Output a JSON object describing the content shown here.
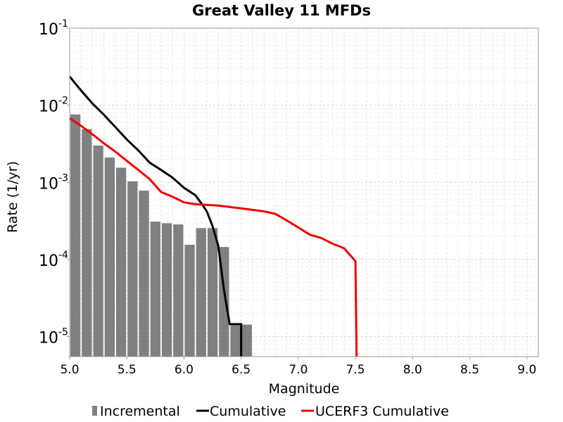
{
  "chart_data": {
    "type": "bar",
    "title": "Great Valley 11 MFDs",
    "xlabel": "Magnitude",
    "ylabel": "Rate (1/yr)",
    "xlim": [
      5.0,
      9.1
    ],
    "ylim": [
      5.5e-06,
      0.1
    ],
    "yscale": "log",
    "grid": true,
    "legend_position": "bottom",
    "x_ticks": [
      "5.0",
      "5.5",
      "6.0",
      "6.5",
      "7.0",
      "7.5",
      "8.0",
      "8.5",
      "9.0"
    ],
    "y_ticks": [
      {
        "base": "10",
        "exp": "-5",
        "value": 1e-05
      },
      {
        "base": "10",
        "exp": "-4",
        "value": 0.0001
      },
      {
        "base": "10",
        "exp": "-3",
        "value": 0.001
      },
      {
        "base": "10",
        "exp": "-2",
        "value": 0.01
      },
      {
        "base": "10",
        "exp": "-1",
        "value": 0.1
      }
    ],
    "series": [
      {
        "name": "Incremental",
        "kind": "bar",
        "color": "#808080",
        "bar_width": 0.1,
        "x": [
          5.05,
          5.15,
          5.25,
          5.35,
          5.45,
          5.55,
          5.65,
          5.75,
          5.85,
          5.95,
          6.05,
          6.15,
          6.25,
          6.35,
          6.45,
          6.55
        ],
        "values": [
          0.0076,
          0.0049,
          0.003,
          0.0021,
          0.00155,
          0.00103,
          0.00078,
          0.00031,
          0.000295,
          0.000285,
          0.000155,
          0.000255,
          0.000255,
          0.000145,
          1.4e-05,
          1.43e-05
        ]
      },
      {
        "name": "Cumulative",
        "kind": "line",
        "color": "#000000",
        "x": [
          5.0,
          5.1,
          5.2,
          5.3,
          5.4,
          5.5,
          5.6,
          5.7,
          5.8,
          5.9,
          6.0,
          6.1,
          6.15,
          6.2,
          6.25,
          6.3,
          6.35,
          6.4,
          6.5,
          6.5
        ],
        "values": [
          0.0235,
          0.0155,
          0.0105,
          0.0075,
          0.0052,
          0.0036,
          0.0026,
          0.0018,
          0.00145,
          0.00115,
          0.00085,
          0.00068,
          0.00054,
          0.00042,
          0.00027,
          0.00015,
          4e-05,
          1.45e-05,
          1.45e-05,
          5.5e-06
        ]
      },
      {
        "name": "UCERF3 Cumulative",
        "kind": "line",
        "color": "#ee0000",
        "x": [
          5.0,
          5.1,
          5.2,
          5.3,
          5.4,
          5.5,
          5.6,
          5.7,
          5.8,
          5.9,
          6.0,
          6.1,
          6.2,
          6.3,
          6.4,
          6.5,
          6.6,
          6.7,
          6.8,
          6.9,
          7.0,
          7.1,
          7.2,
          7.3,
          7.4,
          7.5,
          7.51
        ],
        "values": [
          0.0068,
          0.0054,
          0.0042,
          0.0032,
          0.0025,
          0.0019,
          0.00145,
          0.0011,
          0.00075,
          0.00065,
          0.00055,
          0.00052,
          0.00051,
          0.0005,
          0.00048,
          0.00046,
          0.00044,
          0.00042,
          0.00039,
          0.00032,
          0.00026,
          0.00021,
          0.00019,
          0.00016,
          0.00014,
          9.5e-05,
          5.5e-06
        ]
      }
    ]
  }
}
